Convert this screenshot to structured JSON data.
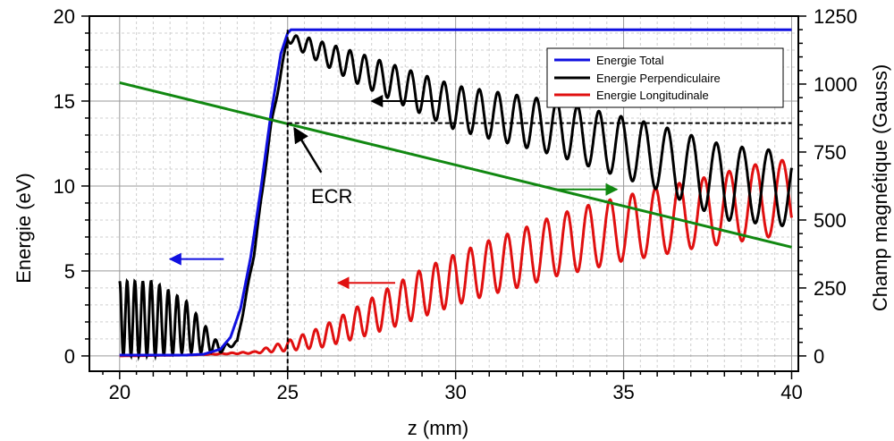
{
  "chart_data": {
    "type": "line",
    "xlabel": "z (mm)",
    "ylabel": "Energie (eV)",
    "y2label": "Champ magnétique (Gauss)",
    "xlim": [
      19.1,
      40.2
    ],
    "ylim": [
      -0.9,
      20
    ],
    "y2lim": [
      -56.25,
      1250
    ],
    "x_ticks": [
      20,
      25,
      30,
      35,
      40
    ],
    "y_ticks": [
      0,
      5,
      10,
      15,
      20
    ],
    "y2_ticks": [
      0,
      250,
      500,
      750,
      1000,
      1250
    ],
    "grid": true,
    "legend_position": "top-right",
    "series": [
      {
        "name": "Energie Total",
        "color": "#1010e0",
        "axis": "left",
        "x": [
          20,
          21,
          22,
          22.5,
          23,
          23.3,
          23.6,
          23.9,
          24.2,
          24.5,
          24.8,
          25.0,
          25.1,
          26,
          30,
          35,
          40
        ],
        "y": [
          0.05,
          0.05,
          0.05,
          0.1,
          0.4,
          1.1,
          2.8,
          5.8,
          9.8,
          14.2,
          17.8,
          19.0,
          19.2,
          19.2,
          19.2,
          19.2,
          19.2
        ]
      },
      {
        "name": "Energie Perpendiculaire",
        "color": "#000000",
        "axis": "left",
        "description_points": "oscillating; centre and amplitude envelope",
        "x": [
          20,
          21,
          22,
          23,
          23.5,
          24,
          24.5,
          25,
          25.5,
          27,
          30,
          33,
          36,
          38,
          40
        ],
        "y": [
          2.2,
          2.2,
          1.7,
          0.4,
          0.8,
          6.0,
          13.5,
          18.7,
          18.3,
          17.0,
          14.6,
          13.4,
          11.7,
          10.2,
          9.8
        ],
        "amplitude": [
          2.2,
          2.2,
          1.5,
          0.2,
          0.1,
          0.1,
          0.1,
          0.2,
          0.5,
          0.9,
          1.3,
          1.6,
          1.9,
          2.2,
          2.2
        ]
      },
      {
        "name": "Energie Longitudinale",
        "color": "#e01010",
        "axis": "left",
        "description_points": "oscillating; centre and amplitude envelope",
        "x": [
          20,
          22,
          24,
          25,
          26,
          27,
          28,
          29,
          30,
          31,
          32,
          33,
          34,
          35,
          36,
          37,
          38,
          39,
          40
        ],
        "y": [
          0,
          0.05,
          0.2,
          0.6,
          1.1,
          1.9,
          2.8,
          3.7,
          4.5,
          5.2,
          5.8,
          6.5,
          7.0,
          7.5,
          7.9,
          8.3,
          8.7,
          9.1,
          9.4
        ],
        "amplitude": [
          0,
          0,
          0.05,
          0.3,
          0.6,
          0.9,
          1.2,
          1.4,
          1.5,
          1.6,
          1.7,
          1.8,
          1.9,
          1.9,
          2.0,
          2.0,
          2.1,
          2.2,
          2.2
        ]
      },
      {
        "name": "Champ magnétique",
        "color": "#118811",
        "axis": "right",
        "x": [
          20,
          40
        ],
        "y": [
          1005,
          400
        ]
      }
    ],
    "annotations": [
      {
        "text": "ECR"
      }
    ]
  }
}
